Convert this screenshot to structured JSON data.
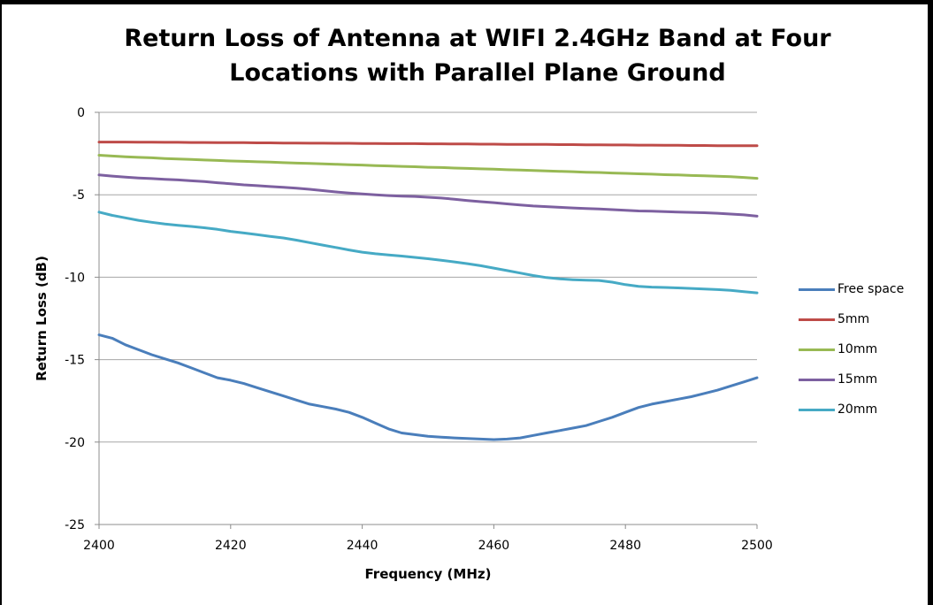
{
  "chart_data": {
    "type": "line",
    "title": "Return Loss of Antenna at WIFI 2.4GHz Band at Four Locations with Parallel Plane Ground",
    "title_lines": [
      "Return Loss of Antenna at WIFI 2.4GHz Band at Four",
      "Locations with Parallel Plane Ground"
    ],
    "xlabel": "Frequency (MHz)",
    "ylabel": "Return Loss (dB)",
    "xlim": [
      2400,
      2500
    ],
    "ylim": [
      -25,
      0
    ],
    "x_ticks": [
      2400,
      2420,
      2440,
      2460,
      2480,
      2500
    ],
    "y_ticks": [
      0,
      -5,
      -10,
      -15,
      -20,
      -25
    ],
    "grid": "horizontal",
    "legend_position": "right",
    "x": [
      2400,
      2402,
      2404,
      2406,
      2408,
      2410,
      2412,
      2414,
      2416,
      2418,
      2420,
      2422,
      2424,
      2426,
      2428,
      2430,
      2432,
      2434,
      2436,
      2438,
      2440,
      2442,
      2444,
      2446,
      2448,
      2450,
      2452,
      2454,
      2456,
      2458,
      2460,
      2462,
      2464,
      2466,
      2468,
      2470,
      2472,
      2474,
      2476,
      2478,
      2480,
      2482,
      2484,
      2486,
      2488,
      2490,
      2492,
      2494,
      2496,
      2498,
      2500
    ],
    "series": [
      {
        "name": "Free space",
        "color": "#4a7ebb",
        "values": [
          -13.5,
          -13.7,
          -14.1,
          -14.4,
          -14.7,
          -14.95,
          -15.2,
          -15.5,
          -15.8,
          -16.1,
          -16.25,
          -16.45,
          -16.7,
          -16.95,
          -17.2,
          -17.45,
          -17.7,
          -17.85,
          -18.0,
          -18.2,
          -18.5,
          -18.85,
          -19.2,
          -19.45,
          -19.55,
          -19.65,
          -19.7,
          -19.75,
          -19.78,
          -19.82,
          -19.85,
          -19.82,
          -19.75,
          -19.6,
          -19.45,
          -19.3,
          -19.15,
          -19.0,
          -18.75,
          -18.5,
          -18.2,
          -17.9,
          -17.7,
          -17.55,
          -17.4,
          -17.25,
          -17.05,
          -16.85,
          -16.6,
          -16.35,
          -16.1
        ]
      },
      {
        "name": "5mm",
        "color": "#be4b48",
        "values": [
          -1.8,
          -1.8,
          -1.8,
          -1.81,
          -1.81,
          -1.82,
          -1.82,
          -1.83,
          -1.83,
          -1.84,
          -1.84,
          -1.84,
          -1.85,
          -1.85,
          -1.86,
          -1.86,
          -1.87,
          -1.87,
          -1.88,
          -1.88,
          -1.89,
          -1.89,
          -1.9,
          -1.9,
          -1.9,
          -1.91,
          -1.91,
          -1.92,
          -1.92,
          -1.93,
          -1.93,
          -1.94,
          -1.94,
          -1.95,
          -1.95,
          -1.96,
          -1.96,
          -1.97,
          -1.97,
          -1.98,
          -1.98,
          -1.99,
          -1.99,
          -2.0,
          -2.0,
          -2.01,
          -2.01,
          -2.02,
          -2.02,
          -2.03,
          -2.03
        ]
      },
      {
        "name": "10mm",
        "color": "#98b954",
        "values": [
          -2.6,
          -2.65,
          -2.7,
          -2.73,
          -2.76,
          -2.8,
          -2.83,
          -2.86,
          -2.89,
          -2.92,
          -2.95,
          -2.97,
          -3.0,
          -3.02,
          -3.05,
          -3.08,
          -3.1,
          -3.13,
          -3.15,
          -3.18,
          -3.2,
          -3.23,
          -3.25,
          -3.28,
          -3.3,
          -3.33,
          -3.35,
          -3.38,
          -3.4,
          -3.43,
          -3.45,
          -3.48,
          -3.5,
          -3.53,
          -3.55,
          -3.58,
          -3.6,
          -3.63,
          -3.65,
          -3.68,
          -3.7,
          -3.73,
          -3.75,
          -3.78,
          -3.8,
          -3.83,
          -3.85,
          -3.88,
          -3.9,
          -3.95,
          -4.0
        ]
      },
      {
        "name": "15mm",
        "color": "#7d60a0",
        "values": [
          -3.8,
          -3.87,
          -3.93,
          -3.98,
          -4.02,
          -4.06,
          -4.1,
          -4.15,
          -4.2,
          -4.27,
          -4.33,
          -4.4,
          -4.45,
          -4.5,
          -4.55,
          -4.6,
          -4.67,
          -4.75,
          -4.83,
          -4.9,
          -4.95,
          -5.0,
          -5.05,
          -5.08,
          -5.1,
          -5.15,
          -5.2,
          -5.27,
          -5.35,
          -5.42,
          -5.48,
          -5.55,
          -5.62,
          -5.68,
          -5.72,
          -5.76,
          -5.8,
          -5.83,
          -5.86,
          -5.9,
          -5.94,
          -5.98,
          -6.0,
          -6.02,
          -6.05,
          -6.07,
          -6.09,
          -6.12,
          -6.17,
          -6.22,
          -6.3
        ]
      },
      {
        "name": "20mm",
        "color": "#46aac5",
        "values": [
          -6.05,
          -6.25,
          -6.4,
          -6.55,
          -6.67,
          -6.77,
          -6.85,
          -6.92,
          -7.0,
          -7.1,
          -7.22,
          -7.32,
          -7.42,
          -7.52,
          -7.62,
          -7.75,
          -7.9,
          -8.05,
          -8.2,
          -8.35,
          -8.48,
          -8.58,
          -8.65,
          -8.72,
          -8.8,
          -8.88,
          -8.97,
          -9.07,
          -9.18,
          -9.3,
          -9.45,
          -9.6,
          -9.75,
          -9.9,
          -10.02,
          -10.1,
          -10.15,
          -10.18,
          -10.2,
          -10.3,
          -10.45,
          -10.55,
          -10.6,
          -10.62,
          -10.65,
          -10.68,
          -10.72,
          -10.75,
          -10.8,
          -10.88,
          -10.95
        ]
      }
    ]
  }
}
